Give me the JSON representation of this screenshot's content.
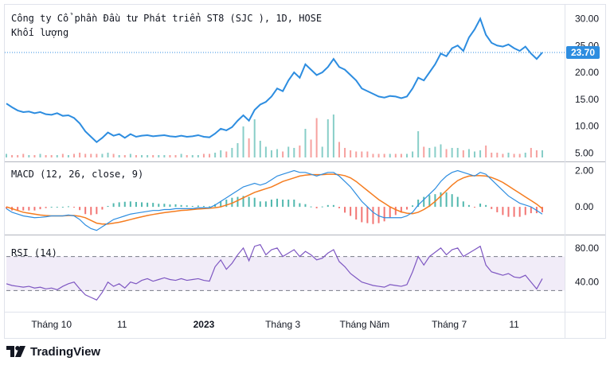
{
  "header": {
    "title": "Công ty Cổ phần Đầu tư Phát triển ST8 (SJC ), 1D, HOSE",
    "volume_label": "Khối lượng"
  },
  "last_price_label": "23.70",
  "macd": {
    "label": "MACD (12, 26, close, 9)"
  },
  "rsi": {
    "label": "RSI (14)"
  },
  "brand": {
    "name": "TradingView"
  },
  "colors": {
    "price_line": "#2d8de0",
    "macd_line": "#2d8de0",
    "signal_line": "#f57c1f",
    "hist_up": "#26a69a",
    "hist_down": "#ef5350",
    "rsi_line": "#7e57c2",
    "rsi_band": "#ede7f6",
    "last_price_bg": "#2d8de0"
  },
  "chart_data": [
    {
      "type": "line",
      "title": "Công ty Cổ phần Đầu tư Phát triển ST8 (SJC ), 1D, HOSE",
      "x_tick_labels": [
        "Tháng 10",
        "11",
        "2023",
        "Tháng 3",
        "Tháng Năm",
        "Tháng 7",
        "11"
      ],
      "y_ticks": [
        5.0,
        10.0,
        15.0,
        20.0,
        25.0,
        30.0
      ],
      "ylim": [
        4,
        32
      ],
      "last_value": 23.7,
      "series": [
        {
          "name": "price",
          "values": [
            14.2,
            13.5,
            12.9,
            12.6,
            12.7,
            12.4,
            12.6,
            12.2,
            12.1,
            12.4,
            11.9,
            12.0,
            11.5,
            10.5,
            9.0,
            8.0,
            7.0,
            7.8,
            8.8,
            8.2,
            8.5,
            7.8,
            8.5,
            8.0,
            8.2,
            8.3,
            8.1,
            8.2,
            8.3,
            8.1,
            8.0,
            8.2,
            8.0,
            8.1,
            8.3,
            8.0,
            7.9,
            8.6,
            9.5,
            9.2,
            9.8,
            11.0,
            12.0,
            11.0,
            13.0,
            14.0,
            14.5,
            15.5,
            17.0,
            16.5,
            18.5,
            20.0,
            19.0,
            21.5,
            20.5,
            19.5,
            20.0,
            21.0,
            22.5,
            21.0,
            20.5,
            19.5,
            18.5,
            17.0,
            16.5,
            16.0,
            15.5,
            15.3,
            15.6,
            15.5,
            15.2,
            15.5,
            17.0,
            19.0,
            18.5,
            20.0,
            21.5,
            23.5,
            23.0,
            24.5,
            25.0,
            24.0,
            26.5,
            28.0,
            30.0,
            27.0,
            25.5,
            25.0,
            24.8,
            25.2,
            24.5,
            24.0,
            24.8,
            23.5,
            22.5,
            23.7
          ]
        },
        {
          "name": "volume",
          "values": [
            0.3,
            0.2,
            0.2,
            0.3,
            0.2,
            0.2,
            0.3,
            0.2,
            0.2,
            0.2,
            0.3,
            0.2,
            0.3,
            0.4,
            0.3,
            0.3,
            0.3,
            0.3,
            0.4,
            0.3,
            0.2,
            0.2,
            0.3,
            0.2,
            0.2,
            0.2,
            0.2,
            0.2,
            0.2,
            0.2,
            0.2,
            0.3,
            0.2,
            0.2,
            0.2,
            0.3,
            0.3,
            0.4,
            0.6,
            0.5,
            0.8,
            1.2,
            2.6,
            1.6,
            3.2,
            1.4,
            0.9,
            0.6,
            0.7,
            0.5,
            0.9,
            0.8,
            1.0,
            2.4,
            1.5,
            3.3,
            0.9,
            3.2,
            3.6,
            1.3,
            0.8,
            0.6,
            0.5,
            0.5,
            0.5,
            0.3,
            0.3,
            0.3,
            0.3,
            0.3,
            0.3,
            0.3,
            0.5,
            2.2,
            0.9,
            0.8,
            0.9,
            1.1,
            0.7,
            0.8,
            0.8,
            0.6,
            0.7,
            0.5,
            0.6,
            1.0,
            0.4,
            0.4,
            0.3,
            0.4,
            0.3,
            0.3,
            0.4,
            0.8,
            0.6,
            0.6
          ]
        }
      ]
    },
    {
      "type": "line",
      "title": "MACD (12, 26, close, 9)",
      "y_ticks": [
        0.0,
        2.0
      ],
      "ylim": [
        -1.4,
        2.2
      ],
      "series": [
        {
          "name": "macd",
          "values": [
            -0.1,
            -0.3,
            -0.4,
            -0.5,
            -0.55,
            -0.6,
            -0.58,
            -0.55,
            -0.5,
            -0.5,
            -0.5,
            -0.45,
            -0.5,
            -0.7,
            -1.0,
            -1.2,
            -1.3,
            -1.1,
            -0.9,
            -0.7,
            -0.6,
            -0.5,
            -0.4,
            -0.35,
            -0.3,
            -0.25,
            -0.2,
            -0.2,
            -0.15,
            -0.15,
            -0.1,
            -0.1,
            -0.1,
            -0.1,
            -0.05,
            -0.05,
            -0.05,
            0.1,
            0.3,
            0.5,
            0.7,
            0.9,
            1.1,
            1.2,
            1.3,
            1.2,
            1.3,
            1.5,
            1.7,
            1.8,
            1.9,
            2.0,
            1.9,
            1.9,
            1.8,
            1.7,
            1.8,
            1.9,
            1.9,
            1.7,
            1.4,
            1.1,
            0.7,
            0.3,
            0.0,
            -0.3,
            -0.5,
            -0.6,
            -0.6,
            -0.6,
            -0.6,
            -0.5,
            -0.3,
            0.1,
            0.4,
            0.7,
            1.0,
            1.4,
            1.7,
            1.9,
            2.0,
            1.9,
            1.8,
            1.7,
            1.9,
            1.8,
            1.5,
            1.2,
            0.9,
            0.6,
            0.4,
            0.2,
            0.1,
            0.0,
            -0.2,
            -0.4
          ]
        },
        {
          "name": "signal",
          "values": [
            0.0,
            -0.1,
            -0.2,
            -0.3,
            -0.35,
            -0.4,
            -0.45,
            -0.48,
            -0.5,
            -0.5,
            -0.5,
            -0.48,
            -0.48,
            -0.52,
            -0.6,
            -0.75,
            -0.9,
            -0.95,
            -0.95,
            -0.9,
            -0.85,
            -0.78,
            -0.7,
            -0.62,
            -0.55,
            -0.48,
            -0.42,
            -0.37,
            -0.32,
            -0.28,
            -0.24,
            -0.2,
            -0.18,
            -0.15,
            -0.12,
            -0.1,
            -0.08,
            -0.05,
            0.0,
            0.1,
            0.2,
            0.35,
            0.5,
            0.65,
            0.8,
            0.9,
            1.0,
            1.1,
            1.25,
            1.4,
            1.5,
            1.6,
            1.7,
            1.75,
            1.78,
            1.78,
            1.78,
            1.8,
            1.8,
            1.78,
            1.72,
            1.6,
            1.4,
            1.15,
            0.9,
            0.65,
            0.4,
            0.2,
            0.0,
            -0.15,
            -0.28,
            -0.35,
            -0.38,
            -0.3,
            -0.15,
            0.05,
            0.3,
            0.6,
            0.9,
            1.2,
            1.45,
            1.6,
            1.7,
            1.72,
            1.72,
            1.7,
            1.62,
            1.5,
            1.35,
            1.15,
            0.95,
            0.75,
            0.55,
            0.35,
            0.15,
            -0.1
          ]
        }
      ]
    },
    {
      "type": "line",
      "title": "RSI (14)",
      "y_ticks": [
        40.0,
        80.0
      ],
      "band": [
        30,
        70
      ],
      "ylim": [
        8,
        92
      ],
      "series": [
        {
          "name": "rsi",
          "values": [
            38,
            36,
            35,
            34,
            35,
            33,
            34,
            32,
            33,
            31,
            35,
            38,
            40,
            32,
            25,
            22,
            19,
            28,
            40,
            35,
            38,
            33,
            40,
            38,
            42,
            44,
            41,
            43,
            45,
            43,
            42,
            44,
            42,
            43,
            44,
            42,
            41,
            58,
            66,
            55,
            62,
            72,
            80,
            65,
            82,
            84,
            72,
            78,
            80,
            70,
            74,
            78,
            70,
            76,
            72,
            66,
            68,
            74,
            78,
            64,
            58,
            50,
            45,
            40,
            38,
            36,
            35,
            34,
            37,
            36,
            35,
            37,
            52,
            70,
            60,
            70,
            75,
            80,
            72,
            78,
            80,
            70,
            74,
            78,
            82,
            60,
            52,
            50,
            48,
            50,
            46,
            45,
            48,
            40,
            32,
            44
          ]
        }
      ]
    }
  ]
}
